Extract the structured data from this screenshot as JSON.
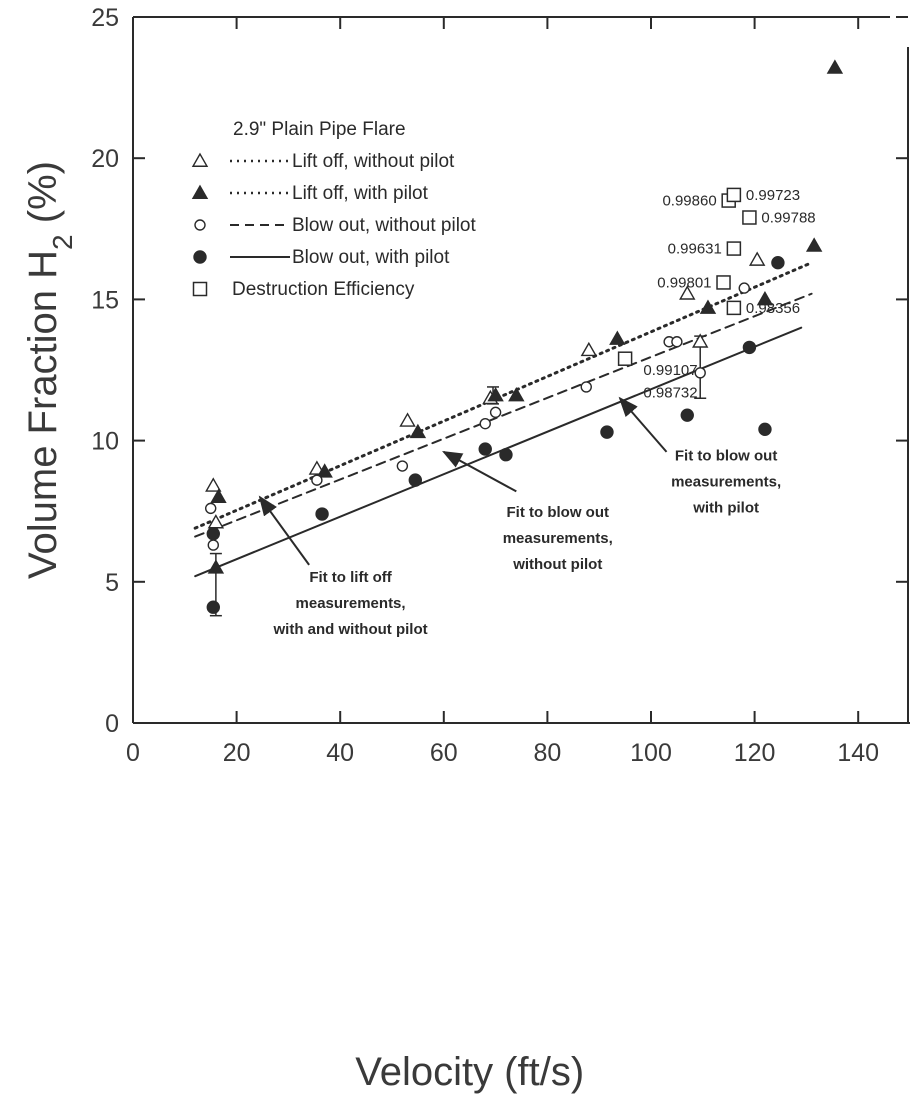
{
  "chart_data": {
    "type": "scatter",
    "xlabel": "Velocity (ft/s)",
    "ylabel": "Volume Fraction H",
    "ylabel_subscript": "2",
    "ylabel_suffix": " (%)",
    "xlim": [
      0,
      150
    ],
    "ylim": [
      0,
      25
    ],
    "x_ticks": [
      0,
      20,
      40,
      60,
      80,
      100,
      120,
      140
    ],
    "y_ticks": [
      0,
      5,
      10,
      15,
      20,
      25
    ],
    "x_tick_labels": [
      "0",
      "20",
      "40",
      "60",
      "80",
      "100",
      "120",
      "140"
    ],
    "y_tick_labels": [
      "0",
      "5",
      "10",
      "15",
      "20",
      "25"
    ],
    "grid": false,
    "legend_position": "top-left",
    "legend_title": "2.9\" Plain Pipe Flare",
    "series": [
      {
        "name": "Lift off, without pilot",
        "marker": "open-triangle",
        "line_style": "dotted",
        "points": [
          [
            15.5,
            8.4
          ],
          [
            16,
            7.1
          ],
          [
            35.5,
            9.0
          ],
          [
            53,
            10.7
          ],
          [
            69,
            11.5
          ],
          [
            88,
            13.2
          ],
          [
            107,
            15.2
          ],
          [
            109.5,
            13.5
          ],
          [
            120.5,
            16.4
          ]
        ]
      },
      {
        "name": "Lift off, with pilot",
        "marker": "filled-triangle",
        "line_style": "dotted",
        "points": [
          [
            16.5,
            8.0
          ],
          [
            16,
            5.5
          ],
          [
            37,
            8.9
          ],
          [
            55,
            10.3
          ],
          [
            70,
            11.6
          ],
          [
            74,
            11.6
          ],
          [
            93.5,
            13.6
          ],
          [
            111,
            14.7
          ],
          [
            122,
            15.0
          ],
          [
            131.5,
            16.9
          ],
          [
            135.5,
            23.2
          ]
        ]
      },
      {
        "name": "Blow out, without pilot",
        "marker": "open-circle",
        "line_style": "dashed",
        "points": [
          [
            15,
            7.6
          ],
          [
            15.5,
            6.3
          ],
          [
            35.5,
            8.6
          ],
          [
            52,
            9.1
          ],
          [
            68,
            10.6
          ],
          [
            70,
            11.0
          ],
          [
            87.5,
            11.9
          ],
          [
            103.5,
            13.5
          ],
          [
            105,
            13.5
          ],
          [
            109.5,
            12.4
          ],
          [
            118,
            15.4
          ]
        ]
      },
      {
        "name": "Blow out, with pilot",
        "marker": "filled-circle",
        "line_style": "solid",
        "points": [
          [
            15.5,
            6.7
          ],
          [
            15.5,
            4.1
          ],
          [
            36.5,
            7.4
          ],
          [
            54.5,
            8.6
          ],
          [
            68,
            9.7
          ],
          [
            72,
            9.5
          ],
          [
            91.5,
            10.3
          ],
          [
            107,
            10.9
          ],
          [
            119,
            13.3
          ],
          [
            122,
            10.4
          ],
          [
            124.5,
            16.3
          ]
        ]
      },
      {
        "name": "Destruction Efficiency",
        "marker": "open-square",
        "points": [
          [
            115,
            18.5
          ],
          [
            116,
            18.7
          ],
          [
            119,
            17.9
          ],
          [
            116,
            16.8
          ],
          [
            114,
            15.6
          ],
          [
            116,
            14.7
          ],
          [
            95,
            12.9
          ]
        ],
        "labels": [
          "0.99860",
          "0.99723",
          "0.99788",
          "0.99631",
          "0.99801",
          "0.98356",
          ""
        ]
      }
    ],
    "fit_lines": [
      {
        "name": "Fit to lift off measurements, with and without pilot",
        "style": "dotted",
        "x": [
          12,
          131
        ],
        "y": [
          6.9,
          16.3
        ]
      },
      {
        "name": "Fit to blow out measurements, without pilot",
        "style": "dashed",
        "x": [
          12,
          131
        ],
        "y": [
          6.6,
          15.2
        ]
      },
      {
        "name": "Fit to blow out measurements, with pilot",
        "style": "solid",
        "x": [
          12,
          129
        ],
        "y": [
          5.2,
          14.0
        ]
      }
    ],
    "error_bars": [
      {
        "x": 16,
        "y_low": 3.8,
        "y_high": 6.0
      },
      {
        "x": 69.5,
        "y_low": 11.3,
        "y_high": 11.9
      },
      {
        "x": 109.5,
        "y_low": 11.5,
        "y_high": 13.7
      }
    ],
    "point_labels": [
      {
        "text": "0.99107",
        "x": 109,
        "y": 12.5
      },
      {
        "text": "0.98732",
        "x": 109,
        "y": 11.7
      }
    ],
    "annotations": [
      {
        "lines": [
          "Fit to lift off",
          "measurements,",
          "with and without pilot"
        ],
        "text_x": 42,
        "text_y": 5.0,
        "arrow_from": [
          34,
          5.6
        ],
        "arrow_to": [
          24.5,
          8.0
        ]
      },
      {
        "lines": [
          "Fit to blow out",
          "measurements,",
          "without pilot"
        ],
        "text_x": 82,
        "text_y": 7.3,
        "arrow_from": [
          74,
          8.2
        ],
        "arrow_to": [
          60,
          9.6
        ]
      },
      {
        "lines": [
          "Fit to blow out",
          "measurements,",
          "with pilot"
        ],
        "text_x": 114.5,
        "text_y": 9.3,
        "arrow_from": [
          103,
          9.6
        ],
        "arrow_to": [
          94,
          11.5
        ]
      }
    ]
  }
}
